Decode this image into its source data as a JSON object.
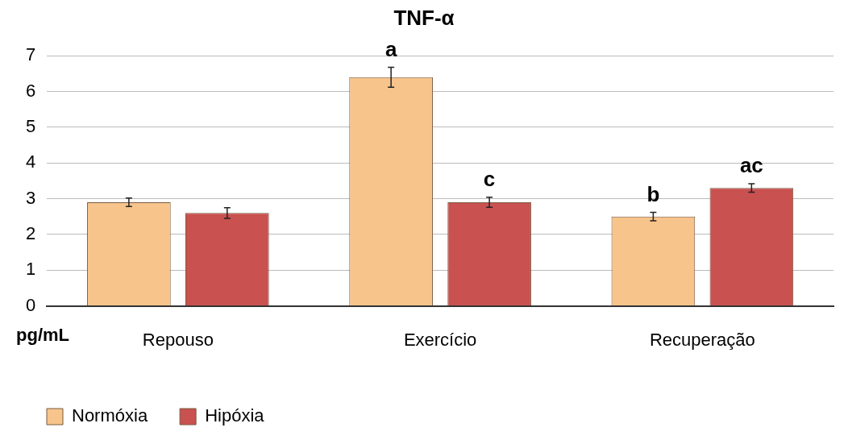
{
  "chart_data": {
    "type": "bar",
    "title": "TNF-α",
    "ylabel": "pg/mL",
    "categories": [
      "Repouso",
      "Exercício",
      "Recuperação"
    ],
    "series": [
      {
        "name": "Normóxia",
        "color": "#f7c48c",
        "values": [
          2.9,
          6.4,
          2.5
        ],
        "errors": [
          0.12,
          0.28,
          0.12
        ],
        "value_labels": [
          null,
          "a",
          "b"
        ]
      },
      {
        "name": "Hipóxia",
        "color": "#c95150",
        "values": [
          2.6,
          2.9,
          3.3
        ],
        "errors": [
          0.15,
          0.14,
          0.12
        ],
        "value_labels": [
          null,
          "c",
          "ac"
        ]
      }
    ],
    "ylim": [
      0,
      7
    ],
    "yticks": [
      0,
      1,
      2,
      3,
      4,
      5,
      6,
      7
    ],
    "grid": "y",
    "legend": "bottom left"
  }
}
